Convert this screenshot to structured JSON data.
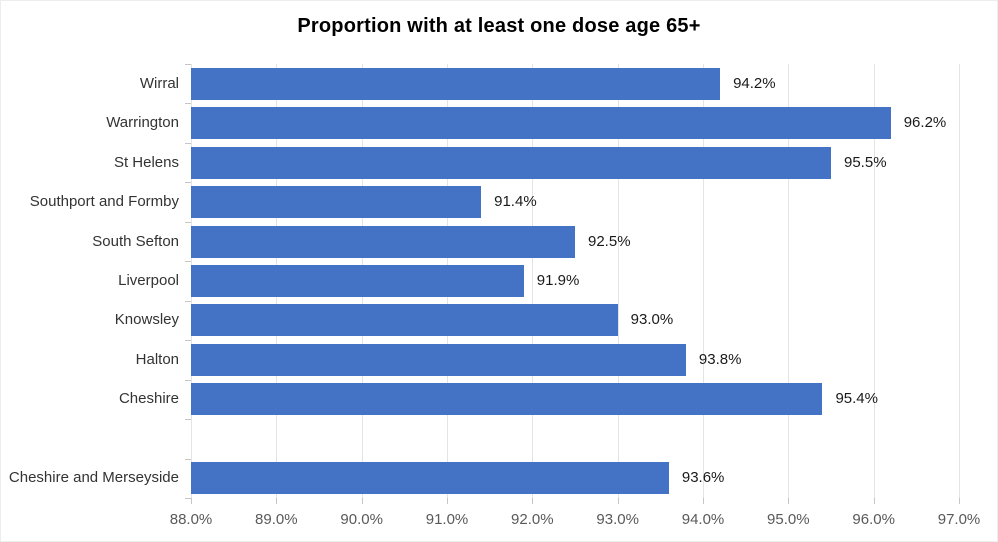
{
  "chart_data": {
    "type": "bar",
    "orientation": "horizontal",
    "title": "Proportion with at least one dose age 65+",
    "categories": [
      "Wirral",
      "Warrington",
      "St Helens",
      "Southport and Formby",
      "South Sefton",
      "Liverpool",
      "Knowsley",
      "Halton",
      "Cheshire",
      "Cheshire and Merseyside"
    ],
    "values": [
      94.2,
      96.2,
      95.5,
      91.4,
      92.5,
      91.9,
      93.0,
      93.8,
      95.4,
      93.6
    ],
    "data_labels": [
      "94.2%",
      "96.2%",
      "95.5%",
      "91.4%",
      "92.5%",
      "91.9%",
      "93.0%",
      "93.8%",
      "95.4%",
      "93.6%"
    ],
    "x_tick_values": [
      88,
      89,
      90,
      91,
      92,
      93,
      94,
      95,
      96,
      97
    ],
    "x_tick_labels": [
      "88.0%",
      "89.0%",
      "90.0%",
      "91.0%",
      "92.0%",
      "93.0%",
      "94.0%",
      "95.0%",
      "96.0%",
      "97.0%"
    ],
    "xlim": [
      88,
      97
    ],
    "xlabel": "",
    "ylabel": "",
    "grid": true,
    "legend": false,
    "gap_before_last_category": true,
    "colors": {
      "bar": "#4472C4",
      "gridline": "#e4e4e4",
      "axis_tick": "#c6c6c6",
      "x_tick_label": "#595959",
      "category_label": "#333333",
      "data_label": "#1a1a1a",
      "title": "#000000"
    }
  }
}
